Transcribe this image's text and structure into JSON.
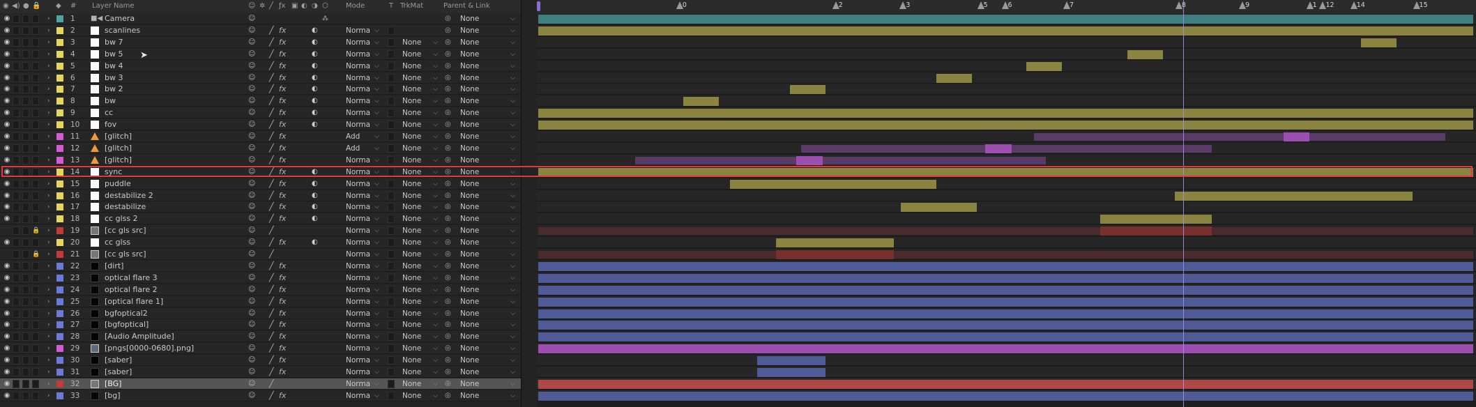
{
  "header": {
    "layer_name_col": "Layer Name",
    "num_col": "#",
    "mode_col": "Mode",
    "t_col": "T",
    "trkmat_col": "TrkMat",
    "parent_col": "Parent & Link"
  },
  "ruler": {
    "work_area_color": "#8a6fd0",
    "current_time_color": "#a190e6",
    "markers": [
      {
        "label": "0",
        "frac": 0.152
      },
      {
        "label": "2",
        "frac": 0.319
      },
      {
        "label": "3",
        "frac": 0.391
      },
      {
        "label": "5",
        "frac": 0.474
      },
      {
        "label": "6",
        "frac": 0.5
      },
      {
        "label": "7",
        "frac": 0.566
      },
      {
        "label": "8",
        "frac": 0.686
      },
      {
        "label": "9",
        "frac": 0.754
      },
      {
        "label": "1",
        "frac": 0.826
      },
      {
        "label": "12",
        "frac": 0.84
      },
      {
        "label": "14",
        "frac": 0.873
      },
      {
        "label": "15",
        "frac": 0.94
      }
    ]
  },
  "layers": [
    {
      "num": "1",
      "name": "Camera",
      "color": "#4fa3a3",
      "type": "camera",
      "mode": "",
      "trkmat": "",
      "parent": "None",
      "visible": true,
      "locked": false,
      "selected": false,
      "fx": false,
      "blend": false,
      "bars": [
        {
          "start": 0.0,
          "end": 1.0,
          "color": "#3e7f7f"
        }
      ]
    },
    {
      "num": "2",
      "name": "scanlines",
      "color": "#e6d75a",
      "type": "solid",
      "mode": "Norma",
      "trkmat": "",
      "parent": "None",
      "visible": true,
      "locked": false,
      "selected": false,
      "fx": true,
      "blend": true,
      "bars": [
        {
          "start": 0.0,
          "end": 1.0,
          "color": "#8a8440"
        }
      ]
    },
    {
      "num": "3",
      "name": "bw 7",
      "color": "#e6d75a",
      "type": "solid",
      "mode": "Norma",
      "trkmat": "None",
      "parent": "None",
      "visible": true,
      "locked": false,
      "selected": false,
      "fx": true,
      "blend": true,
      "bars": [
        {
          "start": 0.88,
          "end": 0.918,
          "color": "#8a8440"
        }
      ]
    },
    {
      "num": "4",
      "name": "bw 5",
      "color": "#e6d75a",
      "type": "solid",
      "mode": "Norma",
      "trkmat": "None",
      "parent": "None",
      "visible": true,
      "locked": false,
      "selected": false,
      "fx": true,
      "blend": true,
      "bars": [
        {
          "start": 0.63,
          "end": 0.668,
          "color": "#8a8440"
        }
      ]
    },
    {
      "num": "5",
      "name": "bw 4",
      "color": "#e6d75a",
      "type": "solid",
      "mode": "Norma",
      "trkmat": "None",
      "parent": "None",
      "visible": true,
      "locked": false,
      "selected": false,
      "fx": true,
      "blend": true,
      "bars": [
        {
          "start": 0.522,
          "end": 0.56,
          "color": "#8a8440"
        }
      ]
    },
    {
      "num": "6",
      "name": "bw 3",
      "color": "#e6d75a",
      "type": "solid",
      "mode": "Norma",
      "trkmat": "None",
      "parent": "None",
      "visible": true,
      "locked": false,
      "selected": false,
      "fx": true,
      "blend": true,
      "bars": [
        {
          "start": 0.426,
          "end": 0.464,
          "color": "#8a8440"
        }
      ]
    },
    {
      "num": "7",
      "name": "bw 2",
      "color": "#e6d75a",
      "type": "solid",
      "mode": "Norma",
      "trkmat": "None",
      "parent": "None",
      "visible": true,
      "locked": false,
      "selected": false,
      "fx": true,
      "blend": true,
      "bars": [
        {
          "start": 0.269,
          "end": 0.307,
          "color": "#8a8440"
        }
      ]
    },
    {
      "num": "8",
      "name": "bw",
      "color": "#e6d75a",
      "type": "solid",
      "mode": "Norma",
      "trkmat": "None",
      "parent": "None",
      "visible": true,
      "locked": false,
      "selected": false,
      "fx": true,
      "blend": true,
      "bars": [
        {
          "start": 0.155,
          "end": 0.193,
          "color": "#8a8440"
        }
      ]
    },
    {
      "num": "9",
      "name": "cc",
      "color": "#e6d75a",
      "type": "solid",
      "mode": "Norma",
      "trkmat": "None",
      "parent": "None",
      "visible": true,
      "locked": false,
      "selected": false,
      "fx": true,
      "blend": true,
      "bars": [
        {
          "start": 0.0,
          "end": 1.0,
          "color": "#8a8440"
        }
      ]
    },
    {
      "num": "10",
      "name": "fov",
      "color": "#e6d75a",
      "type": "solid",
      "mode": "Norma",
      "trkmat": "None",
      "parent": "None",
      "visible": true,
      "locked": false,
      "selected": false,
      "fx": true,
      "blend": true,
      "bars": [
        {
          "start": 0.0,
          "end": 1.0,
          "color": "#8a8440"
        }
      ]
    },
    {
      "num": "11",
      "name": "[glitch]",
      "color": "#d65ad6",
      "type": "cone",
      "mode": "Add",
      "trkmat": "None",
      "parent": "None",
      "visible": true,
      "locked": false,
      "selected": false,
      "fx": true,
      "blend": false,
      "bars": [
        {
          "start": 0.53,
          "end": 0.97,
          "color": "#5a3a66",
          "dim": true
        },
        {
          "start": 0.797,
          "end": 0.825,
          "color": "#9b4fb0"
        }
      ]
    },
    {
      "num": "12",
      "name": "[glitch]",
      "color": "#d65ad6",
      "type": "cone",
      "mode": "Add",
      "trkmat": "None",
      "parent": "None",
      "visible": true,
      "locked": false,
      "selected": false,
      "fx": true,
      "blend": false,
      "bars": [
        {
          "start": 0.281,
          "end": 0.72,
          "color": "#5a3a66",
          "dim": true
        },
        {
          "start": 0.478,
          "end": 0.506,
          "color": "#9b4fb0"
        }
      ]
    },
    {
      "num": "13",
      "name": "[glitch]",
      "color": "#d65ad6",
      "type": "cone",
      "mode": "Norma",
      "trkmat": "None",
      "parent": "None",
      "visible": true,
      "locked": false,
      "selected": false,
      "fx": true,
      "blend": false,
      "bars": [
        {
          "start": 0.104,
          "end": 0.543,
          "color": "#5a3a66",
          "dim": true
        },
        {
          "start": 0.276,
          "end": 0.304,
          "color": "#9b4fb0"
        }
      ]
    },
    {
      "num": "14",
      "name": "sync",
      "color": "#e6d75a",
      "type": "solid",
      "mode": "Norma",
      "trkmat": "None",
      "parent": "None",
      "visible": true,
      "locked": false,
      "selected": false,
      "fx": true,
      "blend": true,
      "bars": [
        {
          "start": 0.0,
          "end": 1.0,
          "color": "#8a8440"
        }
      ]
    },
    {
      "num": "15",
      "name": "puddle",
      "color": "#e6d75a",
      "type": "solid",
      "mode": "Norma",
      "trkmat": "None",
      "parent": "None",
      "visible": true,
      "locked": false,
      "selected": false,
      "fx": true,
      "blend": true,
      "bars": [
        {
          "start": 0.205,
          "end": 0.426,
          "color": "#8a8440"
        }
      ]
    },
    {
      "num": "16",
      "name": "destabilize 2",
      "color": "#e6d75a",
      "type": "solid",
      "mode": "Norma",
      "trkmat": "None",
      "parent": "None",
      "visible": true,
      "locked": false,
      "selected": false,
      "fx": true,
      "blend": true,
      "bars": [
        {
          "start": 0.681,
          "end": 0.935,
          "color": "#8a8440"
        }
      ]
    },
    {
      "num": "17",
      "name": "destabilize",
      "color": "#e6d75a",
      "type": "solid",
      "mode": "Norma",
      "trkmat": "None",
      "parent": "None",
      "visible": true,
      "locked": false,
      "selected": false,
      "fx": true,
      "blend": true,
      "bars": [
        {
          "start": 0.388,
          "end": 0.469,
          "color": "#8a8440"
        }
      ]
    },
    {
      "num": "18",
      "name": "cc glss 2",
      "color": "#e6d75a",
      "type": "solid",
      "mode": "Norma",
      "trkmat": "None",
      "parent": "None",
      "visible": true,
      "locked": false,
      "selected": false,
      "fx": true,
      "blend": true,
      "bars": [
        {
          "start": 0.601,
          "end": 0.72,
          "color": "#8a8440"
        }
      ]
    },
    {
      "num": "19",
      "name": "[cc gls src]",
      "color": "#c23a3a",
      "type": "comp",
      "mode": "Norma",
      "trkmat": "None",
      "parent": "None",
      "visible": false,
      "locked": true,
      "selected": false,
      "fx": false,
      "blend": false,
      "bars": [
        {
          "start": 0.0,
          "end": 1.0,
          "color": "#4a2a2a",
          "dim": true
        },
        {
          "start": 0.601,
          "end": 0.72,
          "color": "#7a2f2f"
        }
      ]
    },
    {
      "num": "20",
      "name": "cc glss",
      "color": "#e6d75a",
      "type": "solid",
      "mode": "Norma",
      "trkmat": "None",
      "parent": "None",
      "visible": true,
      "locked": false,
      "selected": false,
      "fx": true,
      "blend": true,
      "bars": [
        {
          "start": 0.254,
          "end": 0.38,
          "color": "#8a8440"
        }
      ]
    },
    {
      "num": "21",
      "name": "[cc gls src]",
      "color": "#c23a3a",
      "type": "comp",
      "mode": "Norma",
      "trkmat": "None",
      "parent": "None",
      "visible": false,
      "locked": true,
      "selected": false,
      "fx": false,
      "blend": false,
      "bars": [
        {
          "start": 0.0,
          "end": 1.0,
          "color": "#4a2a2a",
          "dim": true
        },
        {
          "start": 0.254,
          "end": 0.38,
          "color": "#7a2f2f"
        }
      ]
    },
    {
      "num": "22",
      "name": "[dirt]",
      "color": "#6a7ad6",
      "type": "black",
      "mode": "Norma",
      "trkmat": "None",
      "parent": "None",
      "visible": true,
      "locked": false,
      "selected": false,
      "fx": true,
      "blend": false,
      "bars": [
        {
          "start": 0.0,
          "end": 1.0,
          "color": "#4f5b96"
        }
      ]
    },
    {
      "num": "23",
      "name": "optical flare 3",
      "color": "#6a7ad6",
      "type": "black",
      "mode": "Norma",
      "trkmat": "None",
      "parent": "None",
      "visible": true,
      "locked": false,
      "selected": false,
      "fx": true,
      "blend": false,
      "bars": [
        {
          "start": 0.0,
          "end": 1.0,
          "color": "#4f5b96"
        }
      ]
    },
    {
      "num": "24",
      "name": "optical flare 2",
      "color": "#6a7ad6",
      "type": "black",
      "mode": "Norma",
      "trkmat": "None",
      "parent": "None",
      "visible": true,
      "locked": false,
      "selected": false,
      "fx": true,
      "blend": false,
      "bars": [
        {
          "start": 0.0,
          "end": 1.0,
          "color": "#4f5b96"
        }
      ]
    },
    {
      "num": "25",
      "name": "[optical flare 1]",
      "color": "#6a7ad6",
      "type": "black",
      "mode": "Norma",
      "trkmat": "None",
      "parent": "None",
      "visible": true,
      "locked": false,
      "selected": false,
      "fx": true,
      "blend": false,
      "bars": [
        {
          "start": 0.0,
          "end": 1.0,
          "color": "#4f5b96"
        }
      ]
    },
    {
      "num": "26",
      "name": "bgfoptical2",
      "color": "#6a7ad6",
      "type": "black",
      "mode": "Norma",
      "trkmat": "None",
      "parent": "None",
      "visible": true,
      "locked": false,
      "selected": false,
      "fx": true,
      "blend": false,
      "bars": [
        {
          "start": 0.0,
          "end": 1.0,
          "color": "#4f5b96"
        }
      ]
    },
    {
      "num": "27",
      "name": "[bgfoptical]",
      "color": "#6a7ad6",
      "type": "black",
      "mode": "Norma",
      "trkmat": "None",
      "parent": "None",
      "visible": true,
      "locked": false,
      "selected": false,
      "fx": true,
      "blend": false,
      "bars": [
        {
          "start": 0.0,
          "end": 1.0,
          "color": "#4f5b96"
        }
      ]
    },
    {
      "num": "28",
      "name": "[Audio Amplitude]",
      "color": "#6a7ad6",
      "type": "black",
      "mode": "Norma",
      "trkmat": "None",
      "parent": "None",
      "visible": true,
      "locked": false,
      "selected": false,
      "fx": true,
      "blend": false,
      "bars": [
        {
          "start": 0.0,
          "end": 1.0,
          "color": "#4f5b96"
        }
      ]
    },
    {
      "num": "29",
      "name": "[pngs[0000-0680].png]",
      "color": "#d65ad6",
      "type": "footage",
      "mode": "Norma",
      "trkmat": "None",
      "parent": "None",
      "visible": true,
      "locked": false,
      "selected": false,
      "fx": true,
      "blend": false,
      "bars": [
        {
          "start": 0.0,
          "end": 1.0,
          "color": "#9b4fb0"
        }
      ]
    },
    {
      "num": "30",
      "name": "[saber]",
      "color": "#6a7ad6",
      "type": "black",
      "mode": "Norma",
      "trkmat": "None",
      "parent": "None",
      "visible": true,
      "locked": false,
      "selected": false,
      "fx": true,
      "blend": false,
      "bars": [
        {
          "start": 0.234,
          "end": 0.307,
          "color": "#4f5b96"
        }
      ]
    },
    {
      "num": "31",
      "name": "[saber]",
      "color": "#6a7ad6",
      "type": "black",
      "mode": "Norma",
      "trkmat": "None",
      "parent": "None",
      "visible": true,
      "locked": false,
      "selected": false,
      "fx": true,
      "blend": false,
      "bars": [
        {
          "start": 0.234,
          "end": 0.307,
          "color": "#4f5b96"
        }
      ]
    },
    {
      "num": "32",
      "name": "[BG]",
      "color": "#c23a3a",
      "type": "comp",
      "mode": "Norma",
      "trkmat": "None",
      "parent": "None",
      "visible": true,
      "locked": false,
      "selected": true,
      "fx": false,
      "blend": false,
      "bars": [
        {
          "start": 0.0,
          "end": 1.0,
          "color": "#b04848"
        }
      ]
    },
    {
      "num": "33",
      "name": "[bg]",
      "color": "#6a7ad6",
      "type": "black",
      "mode": "Norma",
      "trkmat": "None",
      "parent": "None",
      "visible": true,
      "locked": false,
      "selected": false,
      "fx": true,
      "blend": false,
      "bars": [
        {
          "start": 0.0,
          "end": 1.0,
          "color": "#4f5b96"
        }
      ]
    }
  ],
  "highlight_layer": "14"
}
